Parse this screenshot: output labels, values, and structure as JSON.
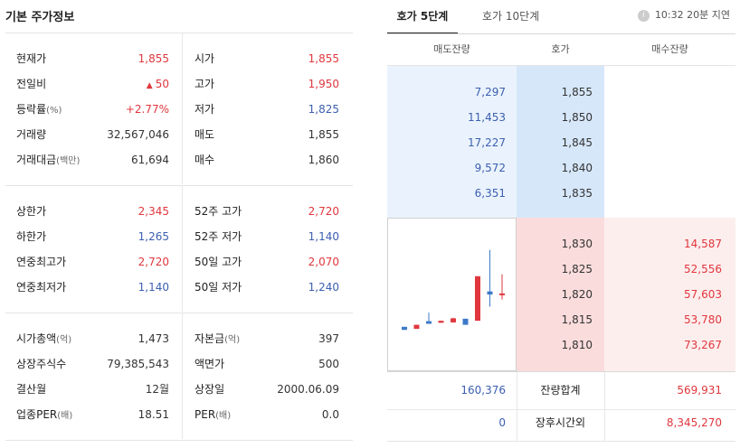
{
  "left": {
    "title": "기본 주가정보",
    "group1": [
      {
        "label": "현재가",
        "label_sub": "",
        "value": "1,855",
        "color": "red",
        "label2": "시가",
        "label2_sub": "",
        "value2": "1,855",
        "color2": "red"
      },
      {
        "label": "전일비",
        "label_sub": "",
        "value": "50",
        "arrow": "▲",
        "color": "red",
        "label2": "고가",
        "label2_sub": "",
        "value2": "1,950",
        "color2": "red"
      },
      {
        "label": "등락률",
        "label_sub": "(%)",
        "value": "+2.77%",
        "color": "red",
        "label2": "저가",
        "label2_sub": "",
        "value2": "1,825",
        "color2": "blue"
      },
      {
        "label": "거래량",
        "label_sub": "",
        "value": "32,567,046",
        "color": "dark",
        "label2": "매도",
        "label2_sub": "",
        "value2": "1,855",
        "color2": "dark"
      },
      {
        "label": "거래대금",
        "label_sub": "(백만)",
        "value": "61,694",
        "color": "dark",
        "label2": "매수",
        "label2_sub": "",
        "value2": "1,860",
        "color2": "dark"
      }
    ],
    "group2": [
      {
        "label": "상한가",
        "label_sub": "",
        "value": "2,345",
        "color": "red",
        "label2": "52주 고가",
        "label2_sub": "",
        "value2": "2,720",
        "color2": "red"
      },
      {
        "label": "하한가",
        "label_sub": "",
        "value": "1,265",
        "color": "blue",
        "label2": "52주 저가",
        "label2_sub": "",
        "value2": "1,140",
        "color2": "blue"
      },
      {
        "label": "연중최고가",
        "label_sub": "",
        "value": "2,720",
        "color": "red",
        "label2": "50일 고가",
        "label2_sub": "",
        "value2": "2,070",
        "color2": "red"
      },
      {
        "label": "연중최저가",
        "label_sub": "",
        "value": "1,140",
        "color": "blue",
        "label2": "50일 저가",
        "label2_sub": "",
        "value2": "1,240",
        "color2": "blue"
      }
    ],
    "group3": [
      {
        "label": "시가총액",
        "label_sub": "(억)",
        "value": "1,473",
        "color": "dark",
        "label2": "자본금",
        "label2_sub": "(억)",
        "value2": "397",
        "color2": "dark"
      },
      {
        "label": "상장주식수",
        "label_sub": "",
        "value": "79,385,543",
        "color": "dark",
        "label2": "액면가",
        "label2_sub": "",
        "value2": "500",
        "color2": "dark"
      },
      {
        "label": "결산월",
        "label_sub": "",
        "value": "12월",
        "color": "dark",
        "label2": "상장일",
        "label2_sub": "",
        "value2": "2000.06.09",
        "color2": "dark"
      },
      {
        "label": "업종PER",
        "label_sub": "(배)",
        "value": "18.51",
        "color": "dark",
        "label2": "PER",
        "label2_sub": "(배)",
        "value2": "0.0",
        "color2": "dark"
      }
    ]
  },
  "orderbook": {
    "tabs": [
      "호가 5단계",
      "호가 10단계"
    ],
    "active_tab": 0,
    "delay_text": "10:32 20분 지연",
    "info_icon": "info-icon",
    "headers": [
      "매도잔량",
      "호가",
      "매수잔량"
    ],
    "asks": [
      {
        "qty": "7,297",
        "price": "1,855"
      },
      {
        "qty": "11,453",
        "price": "1,850"
      },
      {
        "qty": "17,227",
        "price": "1,845"
      },
      {
        "qty": "9,572",
        "price": "1,840"
      },
      {
        "qty": "6,351",
        "price": "1,835"
      }
    ],
    "bids": [
      {
        "price": "1,830",
        "qty": "14,587"
      },
      {
        "price": "1,825",
        "qty": "52,556"
      },
      {
        "price": "1,820",
        "qty": "57,603"
      },
      {
        "price": "1,815",
        "qty": "53,780"
      },
      {
        "price": "1,810",
        "qty": "73,267"
      }
    ],
    "summary": [
      {
        "left": "160,376",
        "label": "잔량합계",
        "right": "569,931"
      },
      {
        "left": "0",
        "label": "장후시간외",
        "right": "8,345,270"
      }
    ],
    "colors": {
      "ask_bg": "#eaf3fd",
      "ask_price_bg": "#d6e7fa",
      "bid_bg": "#fdeeee",
      "bid_price_bg": "#fbdcdc",
      "red": "#e0373d",
      "blue": "#3c5fb0"
    }
  },
  "mini_chart": {
    "candles": [
      {
        "open": 1690,
        "close": 1675,
        "high": 1690,
        "low": 1675,
        "dir": "down"
      },
      {
        "open": 1680,
        "close": 1700,
        "high": 1700,
        "low": 1680,
        "dir": "up"
      },
      {
        "open": 1718,
        "close": 1705,
        "high": 1760,
        "low": 1705,
        "dir": "down"
      },
      {
        "open": 1710,
        "close": 1720,
        "high": 1720,
        "low": 1710,
        "dir": "up"
      },
      {
        "open": 1712,
        "close": 1732,
        "high": 1735,
        "low": 1710,
        "dir": "up"
      },
      {
        "open": 1730,
        "close": 1700,
        "high": 1730,
        "low": 1700,
        "dir": "down"
      },
      {
        "open": 1720,
        "close": 1940,
        "high": 1940,
        "low": 1720,
        "dir": "up"
      },
      {
        "open": 1865,
        "close": 1850,
        "high": 2070,
        "low": 1790,
        "dir": "down"
      },
      {
        "open": 1855,
        "close": 1855,
        "high": 1950,
        "low": 1825,
        "dir": "up"
      }
    ],
    "ylim": [
      1600,
      2100
    ]
  }
}
